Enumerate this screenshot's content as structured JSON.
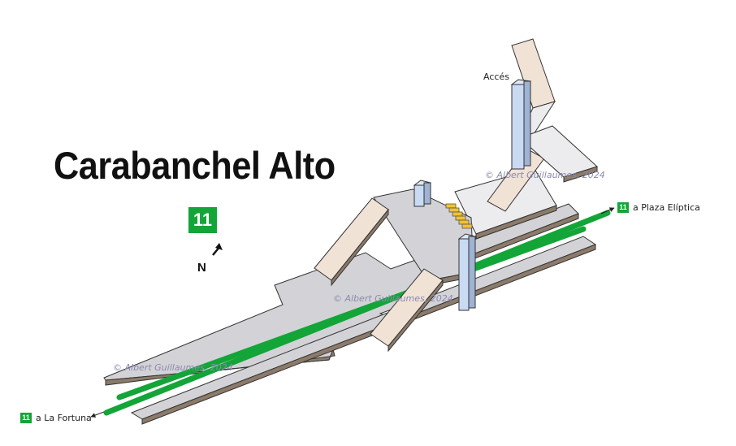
{
  "station": {
    "name": "Carabanchel Alto",
    "line_number": "11"
  },
  "compass": {
    "label": "N"
  },
  "destinations": {
    "east": {
      "line": "11",
      "label": "a Plaza Elíptica"
    },
    "west": {
      "line": "11",
      "label": "a La Fortuna"
    }
  },
  "access": {
    "label": "Accés"
  },
  "credits": [
    "© Albert Guillaumes, 2024",
    "© Albert Guillaumes, 2024",
    "© Albert Guillaumes, 2024"
  ],
  "colors": {
    "line_11": "#13a538",
    "platform_top": "#d3d3d7",
    "platform_side": "#8c7b6a",
    "stairs": "#f1e2d6",
    "elevator": "#c9daf3",
    "escalator": "#f2c230",
    "outline": "#333333"
  }
}
